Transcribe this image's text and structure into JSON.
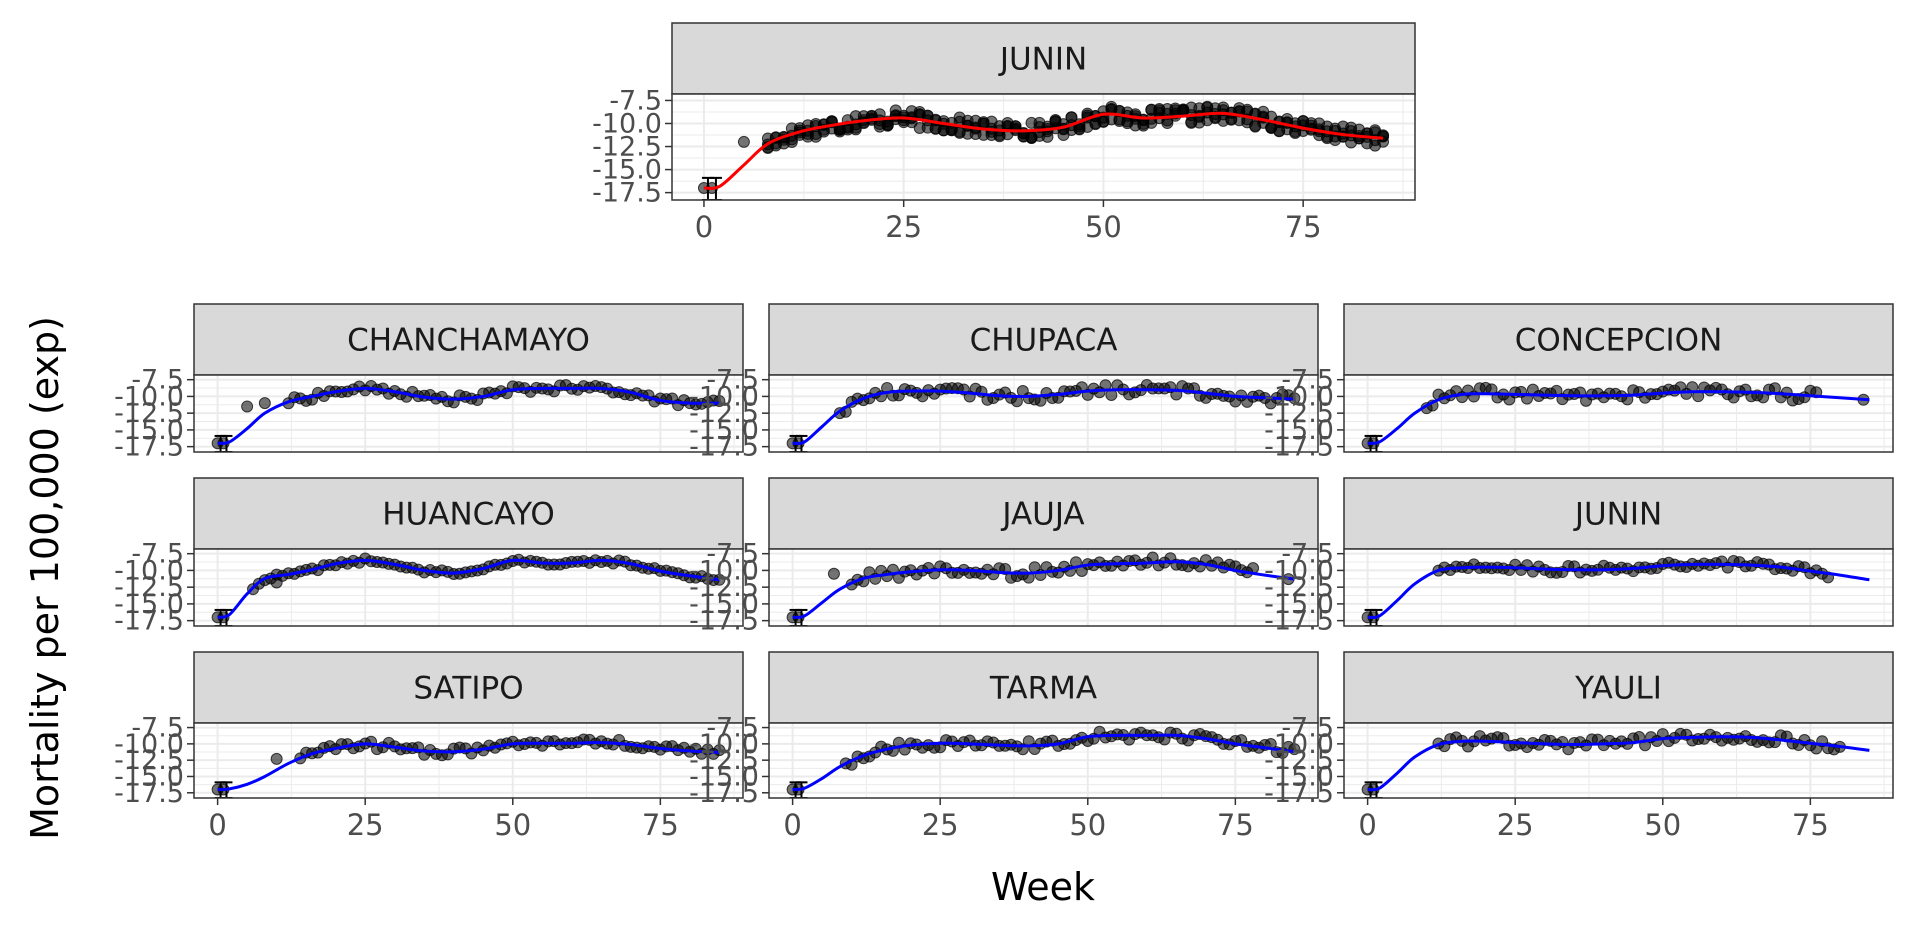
{
  "top_panel": {
    "ylabel": "Mortality per 100,000 (exp)",
    "xlabel": "",
    "line_color": "#ff0000"
  },
  "grid_panels": {
    "ylabel": "Mortality per 100,000 (exp)",
    "xlabel": "Week",
    "line_color": "#0000ff"
  },
  "colors": {
    "strip_fill": "#d9d9d9",
    "panel_border": "#333333",
    "grid": "#ebebeb",
    "point": "#000000"
  },
  "chart_data": [
    {
      "type": "scatter",
      "panel": "JUNIN",
      "title": "JUNIN",
      "xlim": [
        -4,
        89
      ],
      "ylim": [
        -18.3,
        -6.8
      ],
      "xticks": [
        0,
        25,
        50,
        75
      ],
      "yticks": [
        -7.5,
        -10.0,
        -12.5,
        -15.0,
        -17.5
      ],
      "ytick_labels": [
        "-7.5",
        "-10.0",
        "-12.5",
        "-15.0",
        "-17.5"
      ],
      "points_band": {
        "x_start": 8,
        "x_end": 85,
        "spread": 0.9
      },
      "initial_points": [
        {
          "x": 0,
          "y": -17.0
        },
        {
          "x": 1,
          "y": -17.0
        },
        {
          "x": 5,
          "y": -12.0
        }
      ],
      "errorbars": [
        {
          "x": 0.5,
          "y": -17.0,
          "low": -18.3,
          "high": -15.9
        },
        {
          "x": 1.5,
          "y": -17.0,
          "low": -18.3,
          "high": -15.9
        }
      ],
      "curve": {
        "x": [
          0,
          2,
          5,
          8,
          12,
          16,
          20,
          25,
          30,
          35,
          40,
          45,
          50,
          55,
          60,
          65,
          70,
          75,
          80,
          85
        ],
        "y": [
          -17.0,
          -16.8,
          -14.5,
          -12.2,
          -10.9,
          -10.2,
          -9.7,
          -9.4,
          -10.0,
          -10.6,
          -10.8,
          -10.4,
          -9.0,
          -9.4,
          -9.2,
          -8.9,
          -9.6,
          -10.5,
          -11.2,
          -11.6
        ]
      }
    },
    {
      "type": "scatter",
      "panel": "CHANCHAMAYO",
      "title": "CHANCHAMAYO",
      "xlim": [
        -4,
        89
      ],
      "ylim": [
        -18.3,
        -6.8
      ],
      "xticks": [
        0,
        25,
        50,
        75
      ],
      "yticks": [
        -7.5,
        -10.0,
        -12.5,
        -15.0,
        -17.5
      ],
      "ytick_labels": [
        "-7.5",
        "-10.0",
        "-12.5",
        "-15.0",
        "-17.5"
      ],
      "points_band": {
        "x_start": 12,
        "x_end": 85,
        "spread": 0.5
      },
      "initial_points": [
        {
          "x": 0,
          "y": -17.0
        },
        {
          "x": 1,
          "y": -17.0
        },
        {
          "x": 5,
          "y": -11.5
        },
        {
          "x": 8,
          "y": -11.0
        }
      ],
      "errorbars": [
        {
          "x": 0.5,
          "y": -17.0,
          "low": -18.3,
          "high": -15.9
        },
        {
          "x": 1.5,
          "y": -17.0,
          "low": -18.3,
          "high": -15.9
        }
      ],
      "curve": {
        "x": [
          0,
          2,
          5,
          8,
          12,
          16,
          20,
          25,
          30,
          35,
          40,
          45,
          50,
          55,
          60,
          65,
          70,
          75,
          80,
          85
        ],
        "y": [
          -17.0,
          -16.8,
          -14.8,
          -12.5,
          -10.8,
          -10.0,
          -9.3,
          -8.8,
          -9.3,
          -10.1,
          -10.4,
          -10.0,
          -9.0,
          -8.8,
          -8.8,
          -8.8,
          -9.4,
          -10.6,
          -11.0,
          -11.0
        ]
      }
    },
    {
      "type": "scatter",
      "panel": "CHUPACA",
      "title": "CHUPACA",
      "xlim": [
        -4,
        89
      ],
      "ylim": [
        -18.3,
        -6.8
      ],
      "xticks": [
        0,
        25,
        50,
        75
      ],
      "yticks": [
        -7.5,
        -10.0,
        -12.5,
        -15.0,
        -17.5
      ],
      "ytick_labels": [
        "-7.5",
        "-10.0",
        "-12.5",
        "-15.0",
        "-17.5"
      ],
      "points_band": {
        "x_start": 8,
        "x_end": 85,
        "spread": 0.8
      },
      "initial_points": [
        {
          "x": 0,
          "y": -17.0
        },
        {
          "x": 1,
          "y": -17.0
        }
      ],
      "errorbars": [
        {
          "x": 0.5,
          "y": -17.0,
          "low": -18.3,
          "high": -15.9
        },
        {
          "x": 1.5,
          "y": -17.0,
          "low": -18.3,
          "high": -15.9
        }
      ],
      "curve": {
        "x": [
          0,
          2,
          5,
          8,
          12,
          16,
          20,
          25,
          30,
          35,
          40,
          45,
          50,
          55,
          60,
          65,
          70,
          75,
          80,
          85
        ],
        "y": [
          -17.0,
          -16.8,
          -14.5,
          -12.2,
          -10.3,
          -9.4,
          -9.2,
          -9.2,
          -9.5,
          -9.9,
          -10.0,
          -9.7,
          -9.2,
          -9.0,
          -9.0,
          -9.1,
          -9.5,
          -10.0,
          -10.2,
          -10.4
        ]
      }
    },
    {
      "type": "scatter",
      "panel": "CONCEPCION",
      "title": "CONCEPCION",
      "xlim": [
        -4,
        89
      ],
      "ylim": [
        -18.3,
        -6.8
      ],
      "xticks": [
        0,
        25,
        50,
        75
      ],
      "yticks": [
        -7.5,
        -10.0,
        -12.5,
        -15.0,
        -17.5
      ],
      "ytick_labels": [
        "-7.5",
        "-10.0",
        "-12.5",
        "-15.0",
        "-17.5"
      ],
      "points_band": {
        "x_start": 10,
        "x_end": 76,
        "spread": 0.9
      },
      "initial_points": [
        {
          "x": 0,
          "y": -17.0
        },
        {
          "x": 1,
          "y": -17.0
        },
        {
          "x": 84,
          "y": -10.5
        }
      ],
      "errorbars": [
        {
          "x": 0.5,
          "y": -17.0,
          "low": -18.3,
          "high": -15.9
        },
        {
          "x": 1.5,
          "y": -17.0,
          "low": -18.3,
          "high": -15.9
        }
      ],
      "curve": {
        "x": [
          0,
          2,
          5,
          8,
          12,
          16,
          20,
          25,
          30,
          35,
          40,
          45,
          50,
          55,
          60,
          65,
          70,
          75,
          80,
          85
        ],
        "y": [
          -17.0,
          -16.8,
          -14.8,
          -12.5,
          -10.5,
          -9.7,
          -9.6,
          -9.7,
          -9.8,
          -9.9,
          -9.9,
          -9.8,
          -9.5,
          -9.3,
          -9.3,
          -9.4,
          -9.6,
          -9.9,
          -10.2,
          -10.5
        ]
      }
    },
    {
      "type": "scatter",
      "panel": "HUANCAYO",
      "title": "HUANCAYO",
      "xlim": [
        -4,
        89
      ],
      "ylim": [
        -18.3,
        -6.8
      ],
      "xticks": [
        0,
        25,
        50,
        75
      ],
      "yticks": [
        -7.5,
        -10.0,
        -12.5,
        -15.0,
        -17.5
      ],
      "ytick_labels": [
        "-7.5",
        "-10.0",
        "-12.5",
        "-15.0",
        "-17.5"
      ],
      "points_band": {
        "x_start": 6,
        "x_end": 85,
        "spread": 0.3
      },
      "initial_points": [
        {
          "x": 0,
          "y": -17.0
        },
        {
          "x": 1,
          "y": -17.0
        },
        {
          "x": 10,
          "y": -11.8
        }
      ],
      "errorbars": [
        {
          "x": 0.5,
          "y": -17.0,
          "low": -18.3,
          "high": -15.9
        },
        {
          "x": 1.5,
          "y": -17.0,
          "low": -18.3,
          "high": -15.9
        }
      ],
      "curve": {
        "x": [
          0,
          2,
          5,
          8,
          12,
          16,
          20,
          25,
          30,
          35,
          40,
          45,
          50,
          55,
          60,
          65,
          70,
          75,
          80,
          85
        ],
        "y": [
          -17.0,
          -16.6,
          -13.5,
          -11.2,
          -10.6,
          -9.9,
          -9.0,
          -8.5,
          -9.1,
          -10.0,
          -10.4,
          -9.7,
          -8.5,
          -8.9,
          -8.9,
          -8.5,
          -9.0,
          -10.1,
          -10.8,
          -11.4
        ]
      }
    },
    {
      "type": "scatter",
      "panel": "JAUJA",
      "title": "JAUJA",
      "xlim": [
        -4,
        89
      ],
      "ylim": [
        -18.3,
        -6.8
      ],
      "xticks": [
        0,
        25,
        50,
        75
      ],
      "yticks": [
        -7.5,
        -10.0,
        -12.5,
        -15.0,
        -17.5
      ],
      "ytick_labels": [
        "-7.5",
        "-10.0",
        "-12.5",
        "-15.0",
        "-17.5"
      ],
      "points_band": {
        "x_start": 10,
        "x_end": 78,
        "spread": 0.8
      },
      "initial_points": [
        {
          "x": 0,
          "y": -17.0
        },
        {
          "x": 1,
          "y": -17.0
        },
        {
          "x": 7,
          "y": -10.5
        },
        {
          "x": 84,
          "y": -11.3
        }
      ],
      "errorbars": [
        {
          "x": 0.5,
          "y": -17.0,
          "low": -18.3,
          "high": -15.9
        },
        {
          "x": 1.5,
          "y": -17.0,
          "low": -18.3,
          "high": -15.9
        }
      ],
      "curve": {
        "x": [
          0,
          2,
          5,
          8,
          12,
          16,
          20,
          25,
          30,
          35,
          40,
          45,
          50,
          55,
          60,
          65,
          70,
          75,
          80,
          85
        ],
        "y": [
          -17.0,
          -16.8,
          -14.8,
          -12.8,
          -11.2,
          -10.6,
          -10.2,
          -9.9,
          -10.0,
          -10.3,
          -10.4,
          -10.0,
          -9.2,
          -9.0,
          -8.9,
          -8.7,
          -9.1,
          -10.0,
          -10.7,
          -11.3
        ]
      }
    },
    {
      "type": "scatter",
      "panel": "JUNIN-grid",
      "title": "JUNIN",
      "xlim": [
        -4,
        89
      ],
      "ylim": [
        -18.3,
        -6.8
      ],
      "xticks": [
        0,
        25,
        50,
        75
      ],
      "yticks": [
        -7.5,
        -10.0,
        -12.5,
        -15.0,
        -17.5
      ],
      "ytick_labels": [
        "-7.5",
        "-10.0",
        "-12.5",
        "-15.0",
        "-17.5"
      ],
      "points_band": {
        "x_start": 12,
        "x_end": 78,
        "spread": 0.6
      },
      "initial_points": [
        {
          "x": 0,
          "y": -17.0
        },
        {
          "x": 1,
          "y": -17.0
        }
      ],
      "errorbars": [
        {
          "x": 0.5,
          "y": -17.0,
          "low": -18.3,
          "high": -15.9
        },
        {
          "x": 1.5,
          "y": -17.0,
          "low": -18.3,
          "high": -15.9
        }
      ],
      "curve": {
        "x": [
          0,
          2,
          5,
          8,
          12,
          16,
          20,
          25,
          30,
          35,
          40,
          45,
          50,
          55,
          60,
          65,
          70,
          75,
          80,
          85
        ],
        "y": [
          -17.0,
          -16.8,
          -14.5,
          -12.0,
          -10.0,
          -9.6,
          -9.5,
          -9.6,
          -9.8,
          -9.9,
          -9.9,
          -9.7,
          -9.3,
          -9.1,
          -9.1,
          -9.2,
          -9.5,
          -10.1,
          -10.7,
          -11.4
        ]
      }
    },
    {
      "type": "scatter",
      "panel": "SATIPO",
      "title": "SATIPO",
      "xlim": [
        -4,
        89
      ],
      "ylim": [
        -18.3,
        -6.8
      ],
      "xticks": [
        0,
        25,
        50,
        75
      ],
      "yticks": [
        -7.5,
        -10.0,
        -12.5,
        -15.0,
        -17.5
      ],
      "ytick_labels": [
        "-7.5",
        "-10.0",
        "-12.5",
        "-15.0",
        "-17.5"
      ],
      "points_band": {
        "x_start": 14,
        "x_end": 85,
        "spread": 0.6
      },
      "initial_points": [
        {
          "x": 0,
          "y": -17.0
        },
        {
          "x": 1,
          "y": -17.0
        },
        {
          "x": 10,
          "y": -12.3
        }
      ],
      "errorbars": [
        {
          "x": 0.5,
          "y": -17.0,
          "low": -18.3,
          "high": -15.9
        },
        {
          "x": 1.5,
          "y": -17.0,
          "low": -18.3,
          "high": -15.9
        }
      ],
      "curve": {
        "x": [
          0,
          2,
          5,
          8,
          12,
          16,
          20,
          25,
          30,
          35,
          40,
          45,
          50,
          55,
          60,
          65,
          70,
          75,
          80,
          85
        ],
        "y": [
          -17.0,
          -16.9,
          -16.2,
          -15.0,
          -13.0,
          -11.5,
          -10.7,
          -10.0,
          -10.5,
          -11.1,
          -11.2,
          -10.8,
          -10.0,
          -9.9,
          -9.9,
          -9.8,
          -10.1,
          -10.7,
          -11.1,
          -11.3
        ]
      }
    },
    {
      "type": "scatter",
      "panel": "TARMA",
      "title": "TARMA",
      "xlim": [
        -4,
        89
      ],
      "ylim": [
        -18.3,
        -6.8
      ],
      "xticks": [
        0,
        25,
        50,
        75
      ],
      "yticks": [
        -7.5,
        -10.0,
        -12.5,
        -15.0,
        -17.5
      ],
      "ytick_labels": [
        "-7.5",
        "-10.0",
        "-12.5",
        "-15.0",
        "-17.5"
      ],
      "points_band": {
        "x_start": 9,
        "x_end": 85,
        "spread": 0.7
      },
      "initial_points": [
        {
          "x": 0,
          "y": -17.0
        },
        {
          "x": 1,
          "y": -17.0
        }
      ],
      "errorbars": [
        {
          "x": 0.5,
          "y": -17.0,
          "low": -18.3,
          "high": -15.9
        },
        {
          "x": 1.5,
          "y": -17.0,
          "low": -18.3,
          "high": -15.9
        }
      ],
      "curve": {
        "x": [
          0,
          2,
          5,
          8,
          12,
          16,
          20,
          25,
          30,
          35,
          40,
          45,
          50,
          55,
          60,
          65,
          70,
          75,
          80,
          85
        ],
        "y": [
          -17.0,
          -16.8,
          -15.3,
          -13.5,
          -11.8,
          -10.8,
          -10.2,
          -9.9,
          -10.0,
          -10.2,
          -10.3,
          -10.0,
          -8.9,
          -8.7,
          -8.7,
          -8.7,
          -9.2,
          -10.0,
          -10.6,
          -11.2
        ]
      }
    },
    {
      "type": "scatter",
      "panel": "YAULI",
      "title": "YAULI",
      "xlim": [
        -4,
        89
      ],
      "ylim": [
        -18.3,
        -6.8
      ],
      "xticks": [
        0,
        25,
        50,
        75
      ],
      "yticks": [
        -7.5,
        -10.0,
        -12.5,
        -15.0,
        -17.5
      ],
      "ytick_labels": [
        "-7.5",
        "-10.0",
        "-12.5",
        "-15.0",
        "-17.5"
      ],
      "points_band": {
        "x_start": 12,
        "x_end": 80,
        "spread": 0.8
      },
      "initial_points": [
        {
          "x": 0,
          "y": -17.0
        },
        {
          "x": 1,
          "y": -17.0
        }
      ],
      "errorbars": [
        {
          "x": 0.5,
          "y": -17.0,
          "low": -18.3,
          "high": -15.9
        },
        {
          "x": 1.5,
          "y": -17.0,
          "low": -18.3,
          "high": -15.9
        }
      ],
      "curve": {
        "x": [
          0,
          2,
          5,
          8,
          12,
          16,
          20,
          25,
          30,
          35,
          40,
          45,
          50,
          55,
          60,
          65,
          70,
          75,
          80,
          85
        ],
        "y": [
          -17.0,
          -16.8,
          -14.5,
          -12.0,
          -10.1,
          -9.6,
          -9.6,
          -9.8,
          -10.0,
          -10.1,
          -10.0,
          -9.8,
          -9.2,
          -9.0,
          -8.9,
          -9.0,
          -9.4,
          -9.9,
          -10.4,
          -11.0
        ]
      }
    }
  ]
}
